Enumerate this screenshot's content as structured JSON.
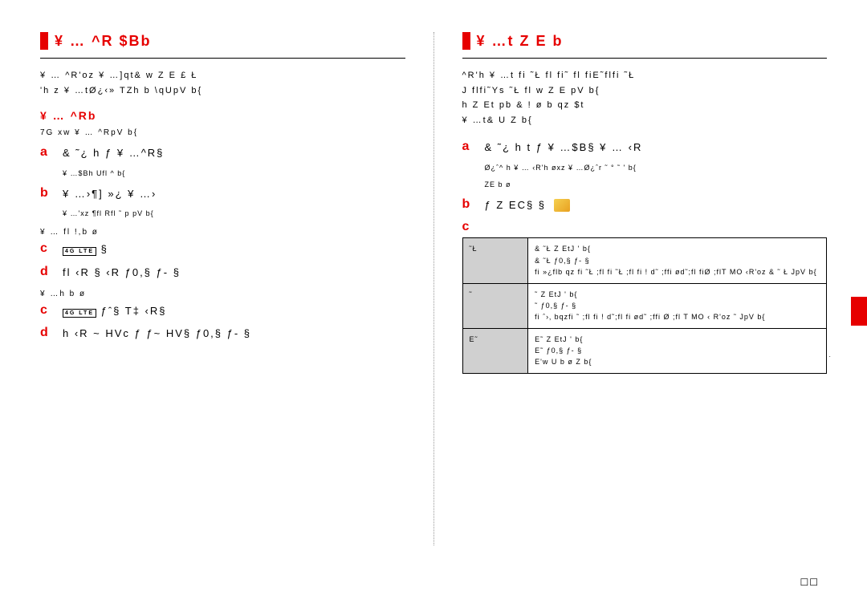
{
  "left": {
    "title": "¥ … ^R $Bb",
    "intro_line1": "¥ … ^R'oz  ¥ …]qt&   w  Z E £ Ł",
    "intro_line2": "'h z   ¥ …tØ¿‹» TZh b \\qUpV b{",
    "sub_title": "¥ … ^Rb",
    "sub_intro": "7G  xw ¥ … ^RpV b{",
    "step_a_text": "&   ˜¿ h     ƒ ¥ …^R§",
    "step_a_note": "¥ …$Bh Ufl ^ b{",
    "step_b_text": "¥ …›¶] »¿   ¥ …›",
    "step_b_note": "¥ …'xz ¶fl Rfl ˜ p pV b{",
    "variant1_label": "¥ … fl !,b ø",
    "step_c1_text": "§",
    "step_d1_text": "fl  ‹R §   ‹R       ƒ0,§ ƒ- §",
    "variant2_label": "¥ …h    b ø",
    "step_c2_text": "ƒˆ§  T‡ ‹R§",
    "step_d2_text": "h  ‹R ~ HVc   ƒ      ƒ~ HV§ ƒ0,§ ƒ- §",
    "inline_badge": "4G LTE"
  },
  "right": {
    "title": "¥ …t  Z E   b",
    "intro_line1": "^R'h ¥ …t  fi   ˜Ł fl  fi˜   fl fiE˜flfi ˜Ł",
    "intro_line2": "J flfi˜Ys    ˜Ł fl    w  Z E   pV b{",
    "intro_line3": "h  Z Et pb &   ! ø b qz       $t",
    "intro_line4": "¥ …t&  U   Z   b{",
    "step_a_text": "&   ˜¿ h    t   ƒ ¥ …$B§   ¥ … ‹R",
    "step_a_note1": "Ø¿ˆ^ h ¥ … ‹R'h øxz    ¥ …Ø¿ˆr ˜ ° ˜   ' b{",
    "step_a_note2": "ZE   b ø",
    "step_b_text": "ƒ  Z EC§        §",
    "step_c_text": "",
    "table": {
      "rows": [
        {
          "label": "˜Ł",
          "content": "&  ˜Ł  Z EtJ ' b{\n&   ˜Ł       ƒ0,§ ƒ- §\nfi »¿flb qz fi ˜Ł ;fl    fi ˜Ł   ;fl     fi !  d˜ ;ffi    ød˜;fl   fiØ ;flT    MO ‹R'oz   &  ˜ Ł  JpV b{"
        },
        {
          "label": "˜",
          "content": "˜   Z EtJ ' b{\n˜          ƒ0,§ ƒ- §\nfi  ˆ›‚  bqzfi ˜    ;fl fi !  d˜;fl  fi   ød˜ ;ffi Ø       ;fl  T   MO ‹ R'oz ˜    JpV b{"
        },
        {
          "label": "E˜",
          "content": "E˜  Z EtJ ' b{\nE˜      ƒ0,§ ƒ- §\nE'w U  b  ø   Z       b{"
        }
      ]
    }
  },
  "page_number": "☐☐",
  "colors": {
    "red": "#e60000",
    "gray_cell": "#d0d0d0",
    "black": "#000000"
  }
}
